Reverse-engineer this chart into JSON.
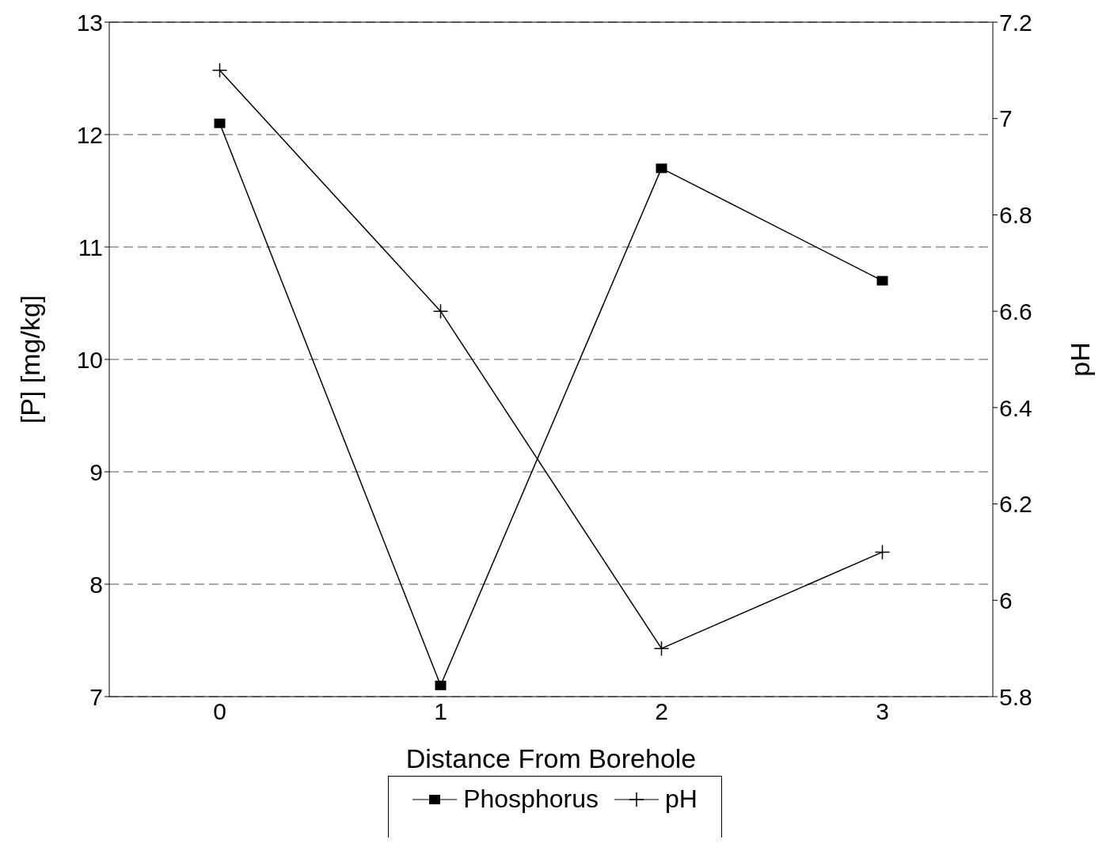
{
  "chart_data": {
    "type": "line",
    "xlabel": "Distance From Borehole",
    "ylabel": "[P] [mg/kg]",
    "y2label": "pH",
    "x": [
      0,
      1,
      2,
      3
    ],
    "series": [
      {
        "name": "Phosphorus",
        "color": "#000000",
        "values": [
          12.1,
          7.1,
          11.7,
          10.7
        ],
        "marker": "square"
      },
      {
        "name": "pH",
        "color": "#000000",
        "values": [
          7.1,
          6.6,
          5.9,
          6.1
        ],
        "axis": "y2",
        "marker": "cross"
      }
    ],
    "xlim": [
      -0.5,
      3.5
    ],
    "xticks": [
      0,
      1,
      2,
      3
    ],
    "ylim": [
      7,
      13
    ],
    "yticks": [
      7,
      8,
      9,
      10,
      11,
      12,
      13
    ],
    "y2lim": [
      5.8,
      7.2
    ],
    "y2ticks": [
      5.8,
      6,
      6.2,
      6.4,
      6.6,
      6.8,
      7,
      7.2
    ],
    "grid": "y",
    "legend": "bottom",
    "line_style": "solid"
  }
}
